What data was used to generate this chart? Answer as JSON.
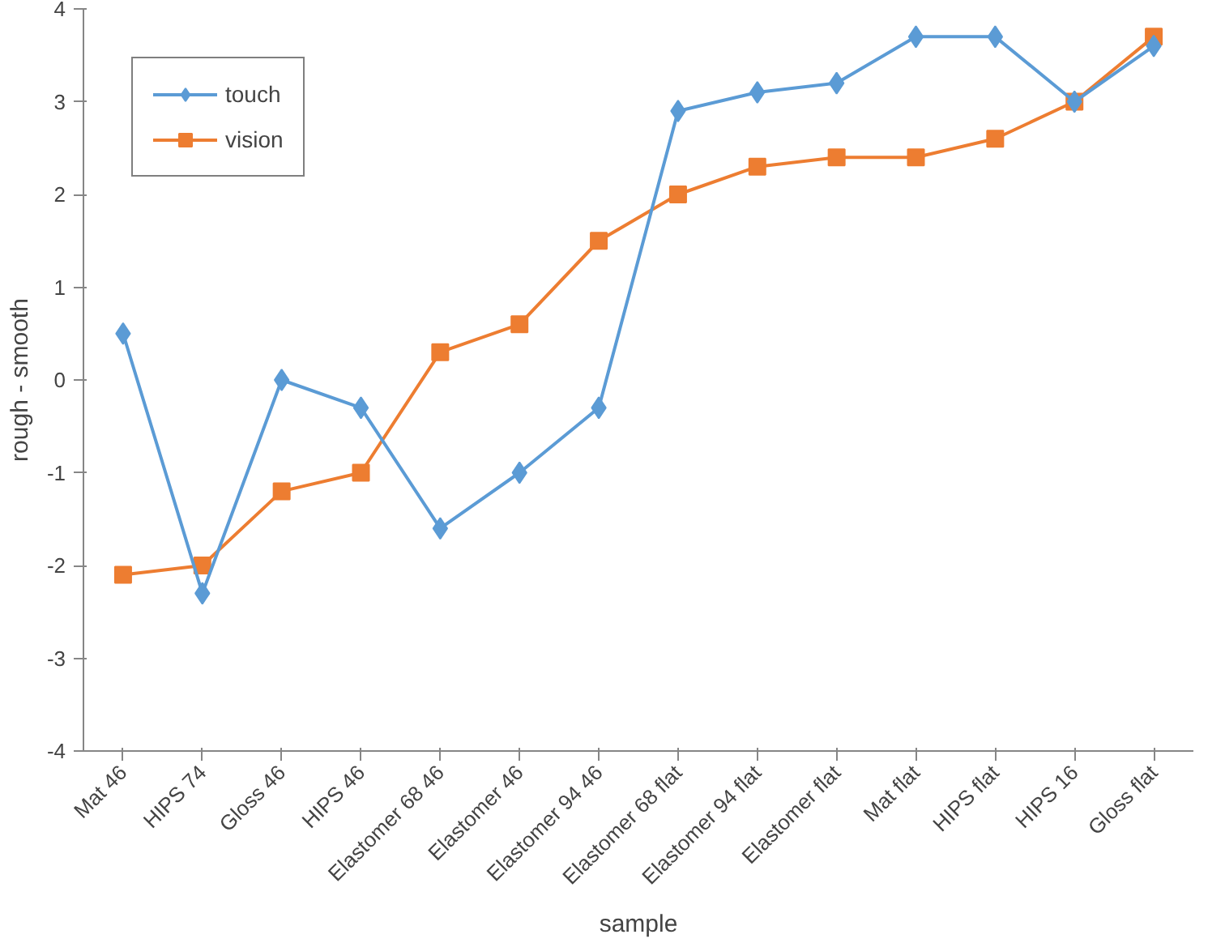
{
  "chart_data": {
    "type": "line",
    "xlabel": "sample",
    "ylabel": "rough - smooth",
    "categories": [
      "Mat 46",
      "HIPS 74",
      "Gloss 46",
      "HIPS 46",
      "Elastomer 68 46",
      "Elastomer 46",
      "Elastomer 94 46",
      "Elastomer 68 flat",
      "Elastomer 94 flat",
      "Elastomer flat",
      "Mat flat",
      "HIPS flat",
      "HIPS 16",
      "Gloss flat"
    ],
    "series": [
      {
        "name": "touch",
        "color": "#5b9bd5",
        "marker": "diamond",
        "values": [
          0.5,
          -2.3,
          0,
          -0.3,
          -1.6,
          -1.0,
          -0.3,
          2.9,
          3.1,
          3.2,
          3.7,
          3.7,
          3.0,
          3.6
        ]
      },
      {
        "name": "vision",
        "color": "#ed7d31",
        "marker": "square",
        "values": [
          -2.1,
          -2.0,
          -1.2,
          -1.0,
          0.3,
          0.6,
          1.5,
          2.0,
          2.3,
          2.4,
          2.4,
          2.6,
          3.0,
          3.7
        ]
      }
    ],
    "ylim": [
      -4,
      4
    ],
    "yticks": [
      -4,
      -3,
      -2,
      -1,
      0,
      1,
      2,
      3,
      4
    ],
    "grid": false,
    "legend": "top left",
    "line_style": "solid"
  }
}
